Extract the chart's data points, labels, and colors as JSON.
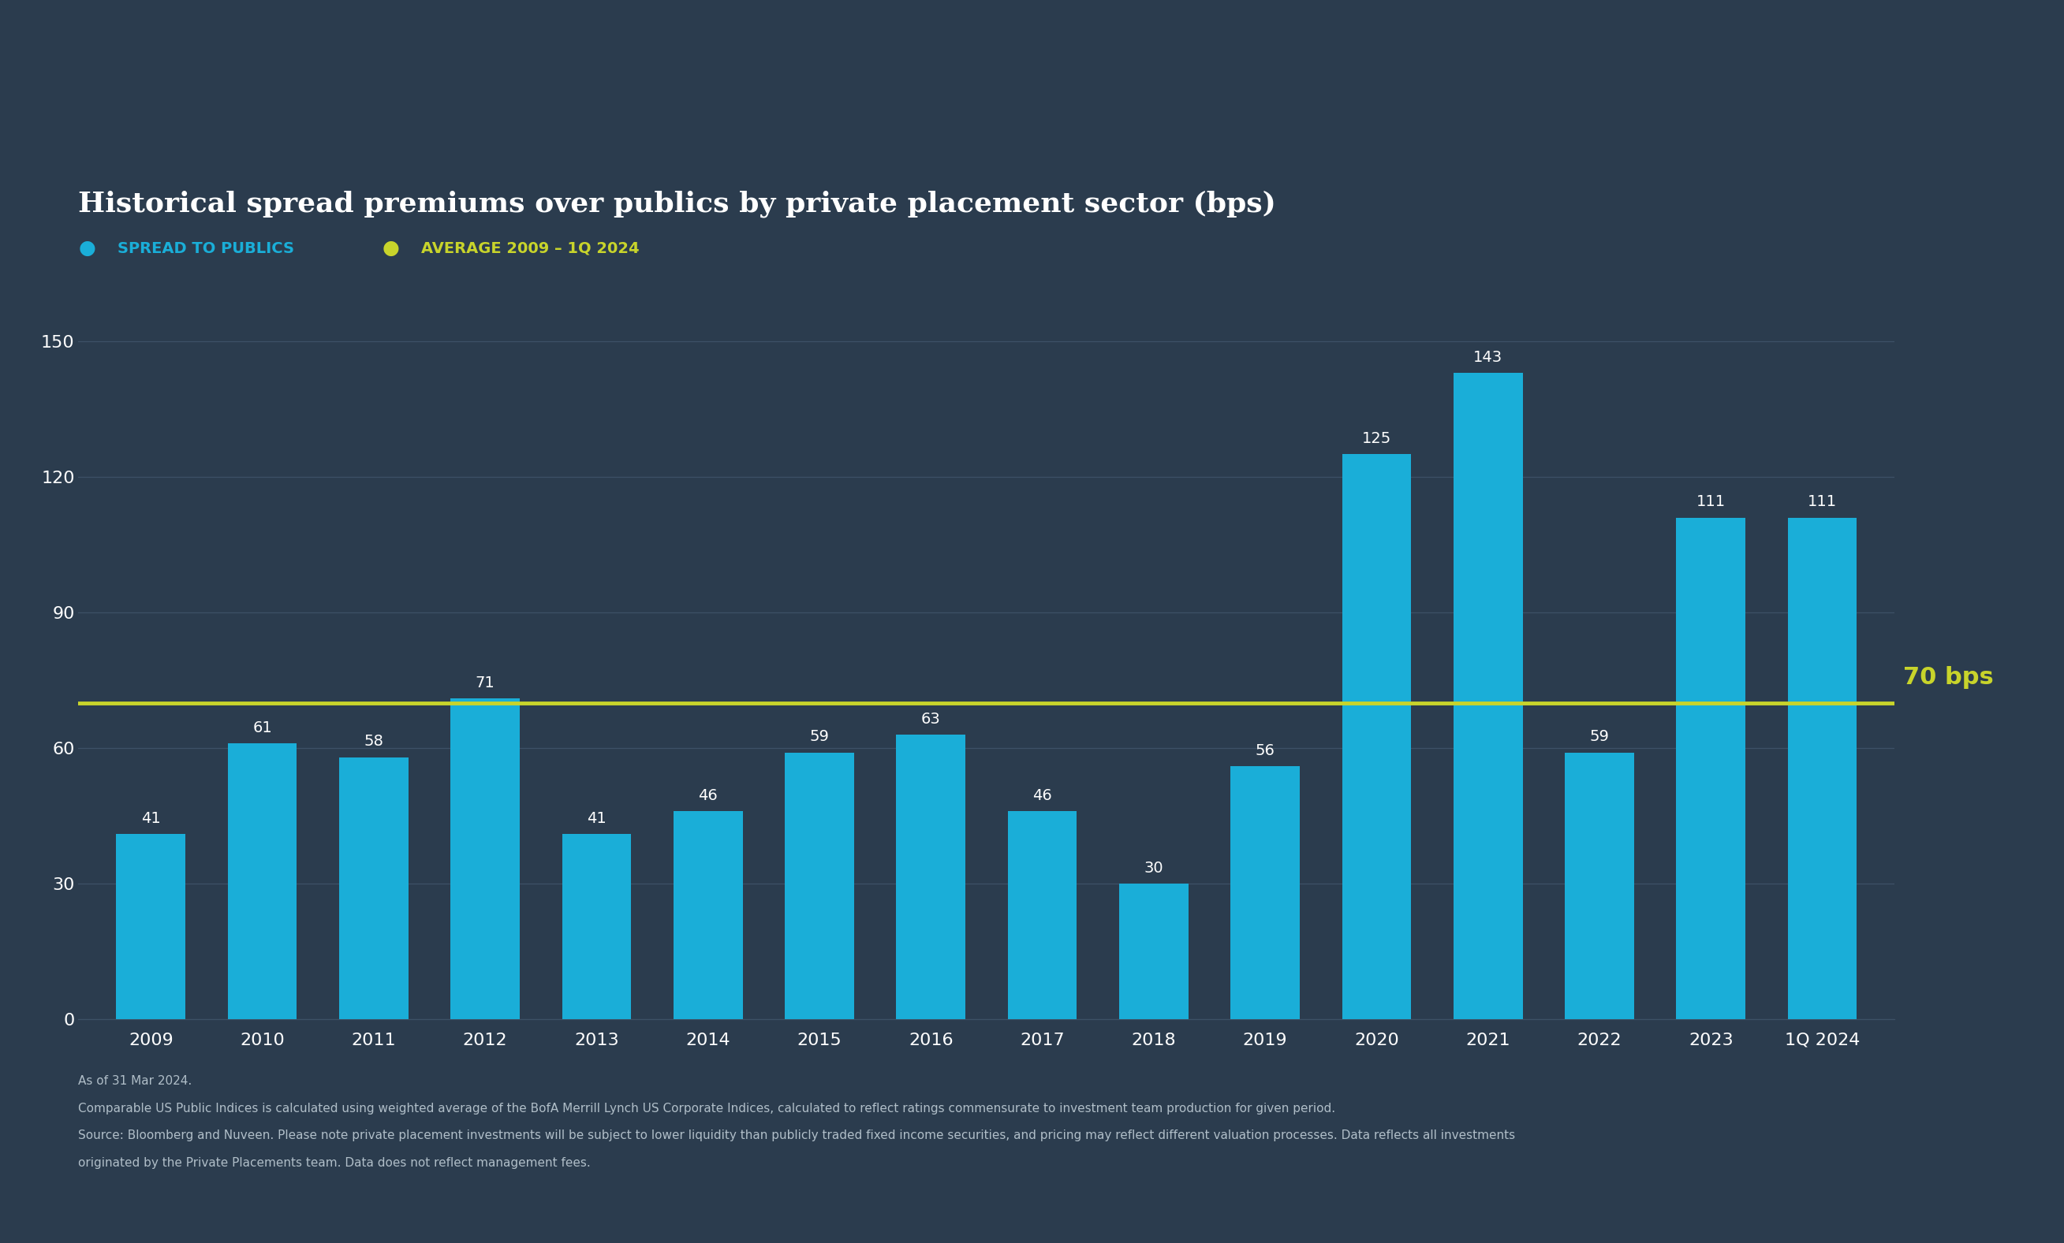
{
  "title": "Historical spread premiums over publics by private placement sector (bps)",
  "categories": [
    "2009",
    "2010",
    "2011",
    "2012",
    "2013",
    "2014",
    "2015",
    "2016",
    "2017",
    "2018",
    "2019",
    "2020",
    "2021",
    "2022",
    "2023",
    "1Q 2024"
  ],
  "values": [
    41,
    61,
    58,
    71,
    41,
    46,
    59,
    63,
    46,
    30,
    56,
    125,
    143,
    59,
    111,
    111
  ],
  "bar_color": "#1aaed8",
  "average_value": 70,
  "average_color": "#c8d42b",
  "average_label": "AVERAGE 2009 – 1Q 2024",
  "spread_label": "SPREAD TO PUBLICS",
  "spread_dot_color": "#1aaed8",
  "average_dot_color": "#c8d42b",
  "avg_annotation": "70 bps",
  "avg_annotation_color": "#c8d42b",
  "background_color": "#2b3c4e",
  "text_color": "#ffffff",
  "grid_color": "#3d5166",
  "yticks": [
    0,
    30,
    60,
    90,
    120,
    150
  ],
  "ylim": [
    0,
    165
  ],
  "title_fontsize": 26,
  "legend_fontsize": 14,
  "tick_fontsize": 16,
  "bar_value_fontsize": 14,
  "avg_annotation_fontsize": 22,
  "footnote_fontsize": 11,
  "footnote_line1": "As of 31 Mar 2024.",
  "footnote_line2": "Comparable US Public Indices is calculated using weighted average of the BofA Merrill Lynch US Corporate Indices, calculated to reflect ratings commensurate to investment team production for given period.",
  "footnote_line3": "Source: Bloomberg and Nuveen. Please note private placement investments will be subject to lower liquidity than publicly traded fixed income securities, and pricing may reflect different valuation processes. Data reflects all investments",
  "footnote_line4": "originated by the Private Placements team. Data does not reflect management fees."
}
